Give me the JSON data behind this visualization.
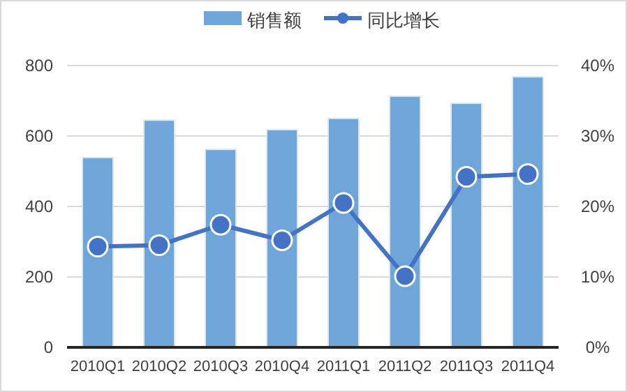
{
  "chart_data": {
    "type": "bar",
    "categories": [
      "2010Q1",
      "2010Q2",
      "2010Q3",
      "2010Q4",
      "2011Q1",
      "2011Q2",
      "2011Q3",
      "2011Q4"
    ],
    "series": [
      {
        "name": "销售额",
        "color": "#6fa6d9",
        "values": [
          539,
          645,
          562,
          618,
          650,
          713,
          693,
          768
        ]
      },
      {
        "name": "同比增长",
        "type": "line",
        "axis": "y2",
        "color": "#4472c4",
        "values": [
          14.3,
          14.5,
          17.4,
          15.2,
          20.5,
          10.1,
          24.2,
          24.6
        ]
      }
    ],
    "ylim": [
      0,
      800
    ],
    "yticks": [
      0,
      200,
      400,
      600,
      800
    ],
    "y2lim": [
      0,
      40
    ],
    "y2ticks": [
      {
        "value": 0,
        "label": "0%"
      },
      {
        "value": 10,
        "label": "10%"
      },
      {
        "value": 20,
        "label": "20%"
      },
      {
        "value": 30,
        "label": "30%"
      },
      {
        "value": 40,
        "label": "40%"
      }
    ],
    "grid": "y",
    "legend": "top",
    "marker": "circle",
    "line_style": "solid"
  }
}
